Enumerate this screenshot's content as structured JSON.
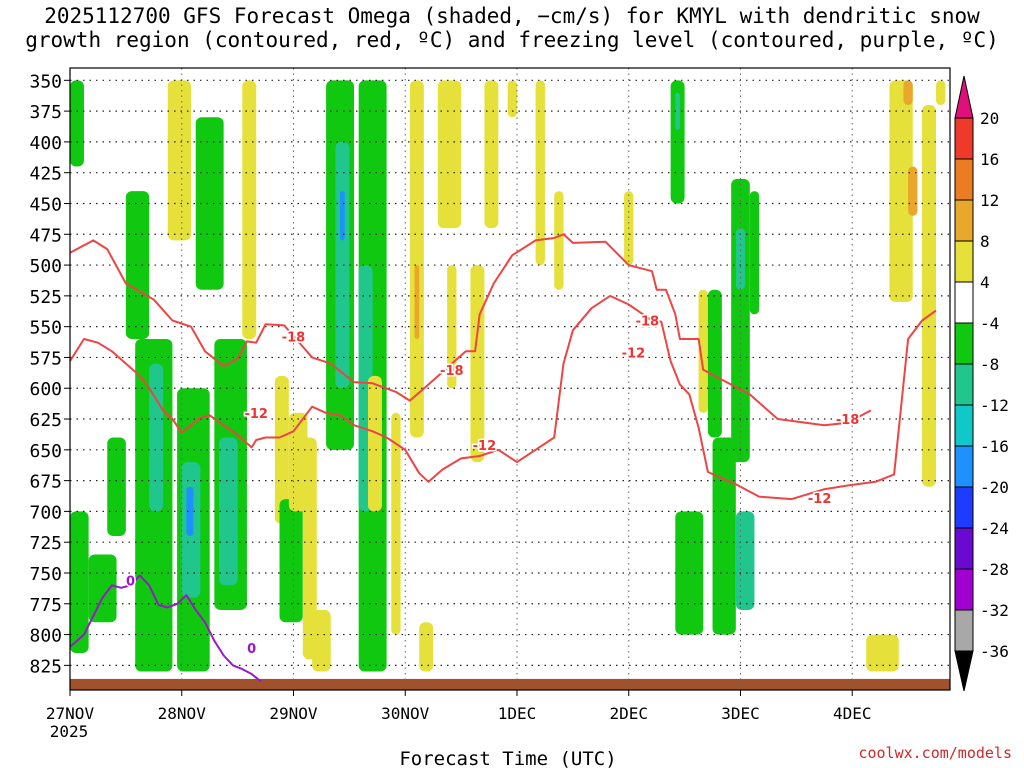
{
  "title": {
    "line1": "2025112700 GFS Forecast Omega (shaded, −cm/s) for KMYL with dendritic snow",
    "line2": "growth region (contoured, red, ºC) and freezing level (contoured, purple, ºC)"
  },
  "credit": "coolwx.com/models",
  "chart_data": {
    "type": "heatmap",
    "xlabel": "Forecast Time (UTC)",
    "x_ticks": [
      "27NOV",
      "28NOV",
      "29NOV",
      "30NOV",
      "1DEC",
      "2DEC",
      "3DEC",
      "4DEC"
    ],
    "x_year_label": "2025",
    "x_range_hours": [
      0,
      189
    ],
    "ylabel": "",
    "y_ticks": [
      350,
      375,
      400,
      425,
      450,
      475,
      500,
      525,
      550,
      575,
      600,
      625,
      650,
      675,
      700,
      725,
      750,
      775,
      800,
      825
    ],
    "y_range_hpa": [
      340,
      845
    ],
    "y_inverted": true,
    "grid": true,
    "colorbar": {
      "label_values": [
        20,
        16,
        12,
        8,
        4,
        -4,
        -8,
        -12,
        -16,
        -20,
        -24,
        -28,
        -32,
        -36
      ],
      "bands": [
        {
          "from": 20,
          "to": 24,
          "color": "#e0107a"
        },
        {
          "from": 16,
          "to": 20,
          "color": "#ee3a2a"
        },
        {
          "from": 12,
          "to": 16,
          "color": "#ec7c22"
        },
        {
          "from": 8,
          "to": 12,
          "color": "#e9a72c"
        },
        {
          "from": 4,
          "to": 8,
          "color": "#e6e03a"
        },
        {
          "from": -4,
          "to": 4,
          "color": "#ffffff"
        },
        {
          "from": -8,
          "to": -4,
          "color": "#10c810"
        },
        {
          "from": -12,
          "to": -8,
          "color": "#20c68c"
        },
        {
          "from": -16,
          "to": -12,
          "color": "#10c8c8"
        },
        {
          "from": -20,
          "to": -16,
          "color": "#1e90ff"
        },
        {
          "from": -24,
          "to": -20,
          "color": "#1e3cff"
        },
        {
          "from": -28,
          "to": -24,
          "color": "#6a0ad0"
        },
        {
          "from": -32,
          "to": -28,
          "color": "#a000d0"
        },
        {
          "from": -36,
          "to": -32,
          "color": "#a8a8a8"
        },
        {
          "from": -40,
          "to": -36,
          "color": "#000000"
        }
      ]
    },
    "omega_regions": [
      {
        "t0": 0,
        "t1": 3,
        "p0": 350,
        "p1": 420,
        "omega": -6
      },
      {
        "t0": 0,
        "t1": 4,
        "p0": 700,
        "p1": 815,
        "omega": -6
      },
      {
        "t0": 4,
        "t1": 10,
        "p0": 735,
        "p1": 790,
        "omega": -6
      },
      {
        "t0": 8,
        "t1": 12,
        "p0": 640,
        "p1": 720,
        "omega": -6
      },
      {
        "t0": 12,
        "t1": 17,
        "p0": 440,
        "p1": 560,
        "omega": -6
      },
      {
        "t0": 14,
        "t1": 22,
        "p0": 560,
        "p1": 830,
        "omega": -6
      },
      {
        "t0": 17,
        "t1": 20,
        "p0": 580,
        "p1": 700,
        "omega": -10
      },
      {
        "t0": 21,
        "t1": 26,
        "p0": 350,
        "p1": 480,
        "omega": 6
      },
      {
        "t0": 23,
        "t1": 30,
        "p0": 600,
        "p1": 830,
        "omega": -7
      },
      {
        "t0": 24,
        "t1": 28,
        "p0": 660,
        "p1": 770,
        "omega": -11
      },
      {
        "t0": 25,
        "t1": 26.5,
        "p0": 680,
        "p1": 720,
        "omega": -18
      },
      {
        "t0": 27,
        "t1": 33,
        "p0": 380,
        "p1": 520,
        "omega": -6
      },
      {
        "t0": 31,
        "t1": 38,
        "p0": 560,
        "p1": 780,
        "omega": -6
      },
      {
        "t0": 32,
        "t1": 36,
        "p0": 640,
        "p1": 760,
        "omega": -10
      },
      {
        "t0": 37,
        "t1": 40,
        "p0": 350,
        "p1": 560,
        "omega": 5
      },
      {
        "t0": 44,
        "t1": 47,
        "p0": 590,
        "p1": 710,
        "omega": 6
      },
      {
        "t0": 45,
        "t1": 50,
        "p0": 690,
        "p1": 790,
        "omega": -6
      },
      {
        "t0": 47,
        "t1": 51,
        "p0": 620,
        "p1": 700,
        "omega": 5
      },
      {
        "t0": 50,
        "t1": 53,
        "p0": 640,
        "p1": 820,
        "omega": 5
      },
      {
        "t0": 52,
        "t1": 56,
        "p0": 780,
        "p1": 830,
        "omega": 5
      },
      {
        "t0": 55,
        "t1": 61,
        "p0": 350,
        "p1": 650,
        "omega": -6
      },
      {
        "t0": 57,
        "t1": 60,
        "p0": 400,
        "p1": 600,
        "omega": -10
      },
      {
        "t0": 58,
        "t1": 59,
        "p0": 440,
        "p1": 480,
        "omega": -18
      },
      {
        "t0": 62,
        "t1": 68,
        "p0": 350,
        "p1": 830,
        "omega": -6
      },
      {
        "t0": 62,
        "t1": 65,
        "p0": 500,
        "p1": 700,
        "omega": -10
      },
      {
        "t0": 64,
        "t1": 67,
        "p0": 590,
        "p1": 700,
        "omega": 6
      },
      {
        "t0": 69,
        "t1": 71,
        "p0": 620,
        "p1": 800,
        "omega": 5
      },
      {
        "t0": 73,
        "t1": 76,
        "p0": 350,
        "p1": 640,
        "omega": 5
      },
      {
        "t0": 74,
        "t1": 75,
        "p0": 500,
        "p1": 560,
        "omega": 10
      },
      {
        "t0": 79,
        "t1": 84,
        "p0": 350,
        "p1": 470,
        "omega": 6
      },
      {
        "t0": 81,
        "t1": 83,
        "p0": 500,
        "p1": 600,
        "omega": 5
      },
      {
        "t0": 75,
        "t1": 78,
        "p0": 790,
        "p1": 830,
        "omega": 5
      },
      {
        "t0": 86,
        "t1": 89,
        "p0": 500,
        "p1": 660,
        "omega": 5
      },
      {
        "t0": 89,
        "t1": 92,
        "p0": 350,
        "p1": 470,
        "omega": 5
      },
      {
        "t0": 94,
        "t1": 96,
        "p0": 350,
        "p1": 380,
        "omega": 5
      },
      {
        "t0": 100,
        "t1": 102,
        "p0": 350,
        "p1": 500,
        "omega": 5
      },
      {
        "t0": 104,
        "t1": 106,
        "p0": 440,
        "p1": 520,
        "omega": 5
      },
      {
        "t0": 119,
        "t1": 121,
        "p0": 440,
        "p1": 500,
        "omega": 5
      },
      {
        "t0": 129,
        "t1": 132,
        "p0": 350,
        "p1": 450,
        "omega": -7
      },
      {
        "t0": 130,
        "t1": 131,
        "p0": 360,
        "p1": 390,
        "omega": -11
      },
      {
        "t0": 130,
        "t1": 136,
        "p0": 700,
        "p1": 800,
        "omega": -6
      },
      {
        "t0": 135,
        "t1": 137,
        "p0": 520,
        "p1": 620,
        "omega": 5
      },
      {
        "t0": 137,
        "t1": 140,
        "p0": 520,
        "p1": 640,
        "omega": -6
      },
      {
        "t0": 138,
        "t1": 143,
        "p0": 640,
        "p1": 800,
        "omega": -7
      },
      {
        "t0": 142,
        "t1": 146,
        "p0": 430,
        "p1": 660,
        "omega": -6
      },
      {
        "t0": 143,
        "t1": 145,
        "p0": 470,
        "p1": 520,
        "omega": -10
      },
      {
        "t0": 146,
        "t1": 148,
        "p0": 440,
        "p1": 540,
        "omega": -6
      },
      {
        "t0": 143,
        "t1": 147,
        "p0": 700,
        "p1": 780,
        "omega": -10
      },
      {
        "t0": 176,
        "t1": 181,
        "p0": 350,
        "p1": 530,
        "omega": 6
      },
      {
        "t0": 179,
        "t1": 181,
        "p0": 350,
        "p1": 370,
        "omega": 10
      },
      {
        "t0": 180,
        "t1": 182,
        "p0": 420,
        "p1": 460,
        "omega": 10
      },
      {
        "t0": 183,
        "t1": 186,
        "p0": 370,
        "p1": 680,
        "omega": 6
      },
      {
        "t0": 186,
        "t1": 188,
        "p0": 350,
        "p1": 370,
        "omega": 5
      },
      {
        "t0": 171,
        "t1": 178,
        "p0": 800,
        "p1": 830,
        "omega": 5
      }
    ],
    "isotherm_minus18": [
      [
        0,
        490
      ],
      [
        5,
        480
      ],
      [
        8,
        487
      ],
      [
        12,
        515
      ],
      [
        18,
        528
      ],
      [
        22,
        545
      ],
      [
        26,
        550
      ],
      [
        29,
        570
      ],
      [
        33,
        582
      ],
      [
        36,
        576
      ],
      [
        38,
        562
      ],
      [
        40,
        563
      ],
      [
        42,
        548
      ],
      [
        46,
        549
      ],
      [
        52,
        575
      ],
      [
        56,
        580
      ],
      [
        61,
        595
      ],
      [
        65,
        596
      ],
      [
        70,
        603
      ],
      [
        73,
        610
      ],
      [
        77,
        597
      ],
      [
        82,
        580
      ],
      [
        85,
        570
      ],
      [
        87,
        570
      ],
      [
        88,
        540
      ],
      [
        91,
        515
      ],
      [
        95,
        492
      ],
      [
        100,
        480
      ],
      [
        104,
        478
      ],
      [
        106,
        475
      ],
      [
        108,
        482
      ],
      [
        115,
        481
      ],
      [
        120,
        500
      ],
      [
        125,
        505
      ],
      [
        126,
        520
      ],
      [
        128,
        520
      ],
      [
        130,
        540
      ],
      [
        131,
        560
      ],
      [
        135,
        560
      ],
      [
        136,
        585
      ],
      [
        141,
        595
      ],
      [
        146,
        605
      ],
      [
        152,
        625
      ],
      [
        162,
        630
      ],
      [
        167,
        628
      ],
      [
        172,
        618
      ]
    ],
    "isotherm_minus12": [
      [
        0,
        578
      ],
      [
        3,
        560
      ],
      [
        6,
        563
      ],
      [
        9,
        570
      ],
      [
        12,
        580
      ],
      [
        15,
        590
      ],
      [
        17,
        600
      ],
      [
        20,
        618
      ],
      [
        22,
        625
      ],
      [
        24,
        636
      ],
      [
        28,
        624
      ],
      [
        30,
        622
      ],
      [
        33,
        630
      ],
      [
        36,
        638
      ],
      [
        39,
        648
      ],
      [
        40,
        642
      ],
      [
        42,
        640
      ],
      [
        45,
        640
      ],
      [
        48,
        635
      ],
      [
        52,
        615
      ],
      [
        55,
        620
      ],
      [
        58,
        622
      ],
      [
        61,
        630
      ],
      [
        65,
        635
      ],
      [
        68,
        640
      ],
      [
        72,
        650
      ],
      [
        75,
        669
      ],
      [
        77,
        676
      ],
      [
        80,
        666
      ],
      [
        84,
        657
      ],
      [
        88,
        655
      ],
      [
        92,
        650
      ],
      [
        96,
        660
      ],
      [
        100,
        650
      ],
      [
        104,
        640
      ],
      [
        106,
        580
      ],
      [
        108,
        553
      ],
      [
        112,
        535
      ],
      [
        116,
        525
      ],
      [
        120,
        532
      ],
      [
        125,
        545
      ],
      [
        127,
        546
      ],
      [
        129,
        578
      ],
      [
        131,
        597
      ],
      [
        133,
        605
      ],
      [
        135,
        632
      ],
      [
        137,
        668
      ],
      [
        143,
        678
      ],
      [
        148,
        688
      ],
      [
        155,
        690
      ],
      [
        162,
        682
      ],
      [
        167,
        679
      ],
      [
        173,
        676
      ],
      [
        177,
        670
      ],
      [
        180,
        560
      ],
      [
        183,
        545
      ],
      [
        186,
        537
      ]
    ],
    "freezing_level_0": [
      [
        0,
        810
      ],
      [
        3,
        800
      ],
      [
        5,
        785
      ],
      [
        7,
        770
      ],
      [
        9,
        760
      ],
      [
        11,
        762
      ],
      [
        13,
        760
      ],
      [
        15,
        752
      ],
      [
        17,
        760
      ],
      [
        19,
        776
      ],
      [
        21,
        778
      ],
      [
        23,
        775
      ],
      [
        25,
        768
      ],
      [
        27,
        780
      ],
      [
        29,
        790
      ],
      [
        31,
        805
      ],
      [
        33,
        817
      ],
      [
        35,
        825
      ],
      [
        37,
        828
      ],
      [
        39,
        832
      ],
      [
        41,
        838
      ]
    ],
    "isotherm_labels": [
      {
        "text": "-18",
        "t": 48,
        "p": 558
      },
      {
        "text": "-18",
        "t": 82,
        "p": 585
      },
      {
        "text": "-18",
        "t": 124,
        "p": 545
      },
      {
        "text": "-18",
        "t": 167,
        "p": 625
      },
      {
        "text": "-12",
        "t": 40,
        "p": 620
      },
      {
        "text": "-12",
        "t": 89,
        "p": 646
      },
      {
        "text": "-12",
        "t": 121,
        "p": 571
      },
      {
        "text": "-12",
        "t": 161,
        "p": 689
      },
      {
        "text": "0",
        "t": 13,
        "p": 756
      },
      {
        "text": "0",
        "t": 39,
        "p": 811
      }
    ]
  }
}
